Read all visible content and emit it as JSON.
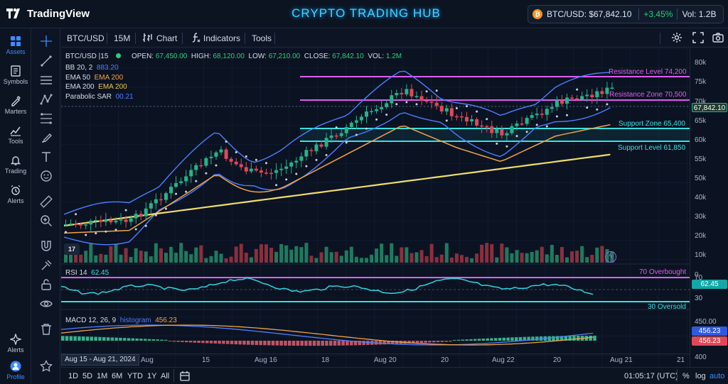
{
  "app": {
    "logo_text": "TradingView",
    "title": "CRYPTO TRADING HUB"
  },
  "ticker": {
    "coin_symbol": "₿",
    "pair_price": "BTC/USD: $67,842.10",
    "change": "+3.45%",
    "volume": "Vol: 1.2B"
  },
  "sidebar": {
    "items": [
      {
        "label": "Assets",
        "icon": "assets-icon"
      },
      {
        "label": "Symbols",
        "icon": "symbols-icon"
      },
      {
        "label": "Marters",
        "icon": "markers-icon"
      },
      {
        "label": "Tools",
        "icon": "chart-tools-icon"
      },
      {
        "label": "Trading",
        "icon": "bell-icon"
      },
      {
        "label": "Alerts",
        "icon": "alarm-clock-icon"
      }
    ],
    "bottom_items": [
      {
        "label": "Alerts",
        "icon": "sparkle-icon"
      },
      {
        "label": "Profile",
        "icon": "profile-icon"
      }
    ]
  },
  "toolbar": {
    "symbol": "BTC/USD",
    "interval": "15M",
    "chart_label": "Chart",
    "indicators_label": "Indicators",
    "tools_label": "Tools"
  },
  "legend": {
    "symbol_line": "BTC/USD |15",
    "open_label": "OPEN:",
    "open": "67,450.00",
    "high_label": "HIGH:",
    "high": "68,120.00",
    "low_label": "LOW:",
    "low": "67,210.00",
    "close_label": "CLOSE:",
    "close": "67,842.10",
    "vol_label": "VOL:",
    "vol": "1.2M",
    "bb_label": "BB 20, 2",
    "bb_value": "883.20",
    "ema50_label": "EMA 50",
    "ema50_value": "EMA 200",
    "ema200_label": "EMA 200",
    "ema200_value": "EMA 200",
    "sar_label": "Parabolic SAR",
    "sar_value": "00.21"
  },
  "levels": {
    "resistance_level": "Resistance Level 74,200",
    "resistance_zone": "Resistance Zone 70,500",
    "support_zone": "Support Zone 65,400",
    "support_level": "Support Level 61,850"
  },
  "price_axis": {
    "ticks": [
      "80k",
      "75k",
      "70k",
      "65k",
      "60k",
      "55k",
      "50k",
      "40k",
      "30k",
      "20k",
      "10k",
      "0"
    ],
    "current_price_tag": "67,842.10"
  },
  "rsi": {
    "label": "RSI 14",
    "value": "62.45",
    "overbought_label": "70 Overbought",
    "oversold_label": "30 Oversold",
    "axis_ticks": [
      "70",
      "30"
    ],
    "value_tag": "62.45"
  },
  "macd": {
    "label": "MACD 12, 26, 9",
    "histogram_label": "histogram",
    "histogram_value": "456.23",
    "axis_ticks": [
      "450.00",
      "400"
    ],
    "tag_macd": "456.23",
    "tag_signal": "456.23"
  },
  "time_axis": {
    "range_chip": "Aug 15 - Aug 21, 2024",
    "labels": [
      "Aug",
      "15",
      "Aug 16",
      "18",
      "Aug 20",
      "20",
      "Aug 22",
      "20",
      "Aug 21",
      "21"
    ]
  },
  "bottom_bar": {
    "ranges": [
      "1D",
      "5D",
      "1M",
      "6M",
      "YTD",
      "1Y",
      "All"
    ],
    "clock": "01:05:17 (UTC)",
    "percent_label": "%",
    "log_label": "log",
    "auto_label": "auto"
  },
  "colors": {
    "bull": "#26b38a",
    "bear": "#e0485a",
    "bollinger": "#4f7dff",
    "ema50": "#f0a24a",
    "ema200": "#f0dc6a",
    "resistance": "#e05cf0",
    "support": "#38e0e0",
    "accent": "#3fd3ff"
  }
}
